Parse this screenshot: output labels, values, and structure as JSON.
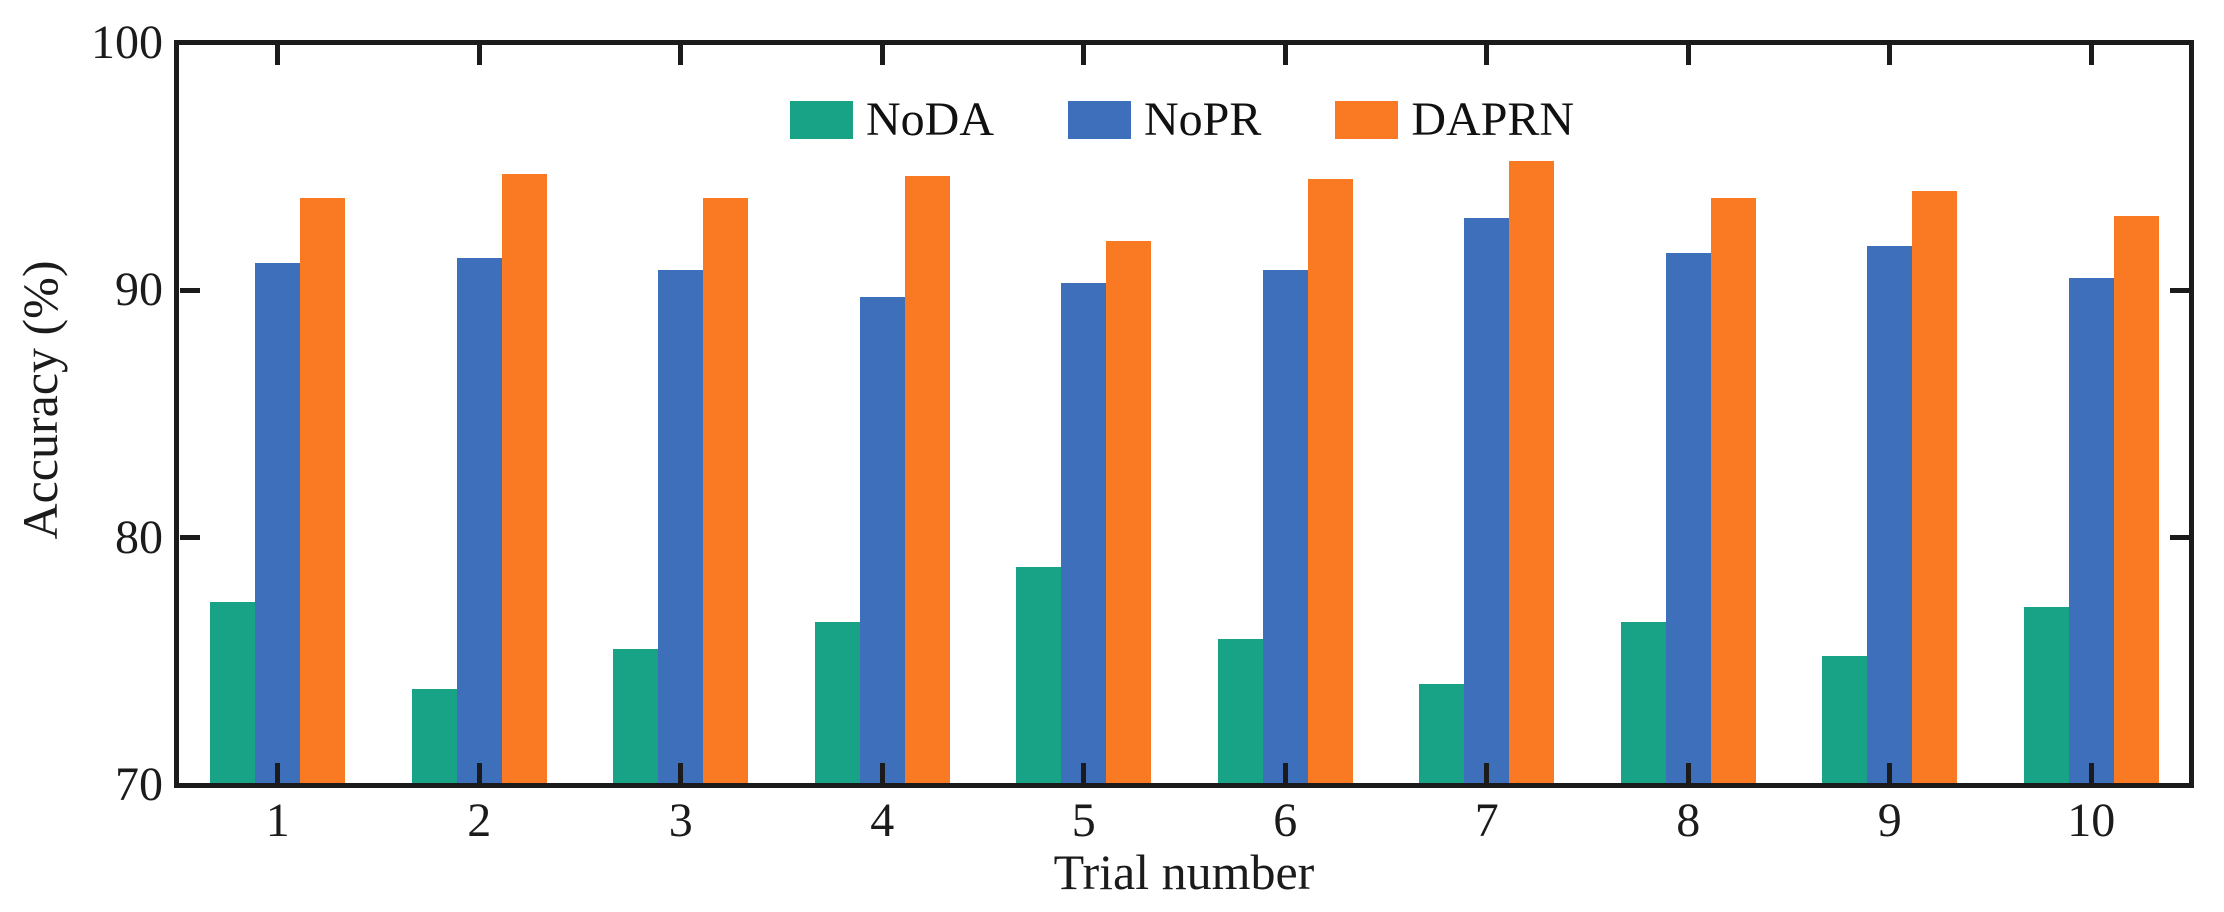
{
  "figure": {
    "background": "#ffffff",
    "axis_color": "#1b1b1b",
    "text_color": "#1b1b1b"
  },
  "chart_data": {
    "type": "bar",
    "title": "",
    "xlabel": "Trial number",
    "ylabel": "Accuracy (%)",
    "categories": [
      "1",
      "2",
      "3",
      "4",
      "5",
      "6",
      "7",
      "8",
      "9",
      "10"
    ],
    "ylim": [
      70,
      100
    ],
    "yticks": [
      70,
      80,
      90,
      100
    ],
    "ytick_labels": [
      "70",
      "80",
      "90",
      "100"
    ],
    "grid": false,
    "legend_position": "top-center-inside",
    "tick_style": "inward-all-four-sides-majors-only",
    "series": [
      {
        "name": "NoDA",
        "color": "#18a286",
        "values": [
          77.4,
          73.9,
          75.5,
          76.6,
          78.8,
          75.9,
          74.1,
          76.6,
          75.2,
          77.2
        ]
      },
      {
        "name": "NoPR",
        "color": "#3e6fba",
        "values": [
          91.1,
          91.3,
          90.8,
          89.7,
          90.3,
          90.8,
          92.9,
          91.5,
          91.8,
          90.5
        ]
      },
      {
        "name": "DAPRN",
        "color": "#fa7a23",
        "values": [
          93.7,
          94.7,
          93.7,
          94.6,
          92.0,
          94.5,
          95.2,
          93.7,
          94.0,
          93.0
        ]
      }
    ]
  }
}
